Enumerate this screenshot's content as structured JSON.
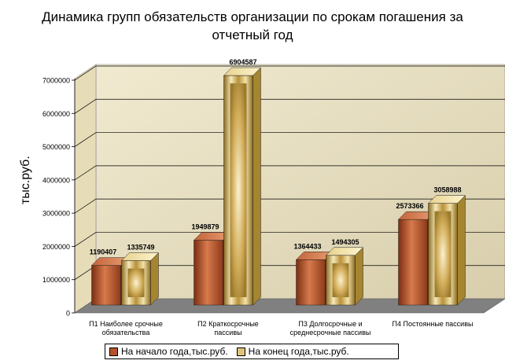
{
  "chart_data": {
    "type": "bar",
    "title": "Динамика групп обязательств организации по срокам погашения за отчетный год",
    "ylabel": "тыс.руб.",
    "xlabel": "",
    "ylim": [
      0,
      7000000
    ],
    "yticks": [
      "0",
      "1000000",
      "2000000",
      "3000000",
      "4000000",
      "5000000",
      "6000000",
      "7000000"
    ],
    "categories": [
      [
        "П1 Наиболее срочные",
        "обязательства"
      ],
      [
        "П2 Краткосрочные",
        "пассивы"
      ],
      [
        "П3 Долгосрочные и",
        "среднесрочные пассивы"
      ],
      [
        "П4 Постоянные пассивы"
      ]
    ],
    "series": [
      {
        "name": "На начало года,тыс.руб.",
        "values": [
          1190407,
          1949879,
          1364433,
          2573366
        ],
        "labels": [
          "1190407",
          "1949879",
          "1364433",
          "2573366"
        ],
        "color": "#b5532c"
      },
      {
        "name": "На конец года,тыс.руб.",
        "values": [
          1335749,
          6904587,
          1494305,
          3058988
        ],
        "labels": [
          "1335749",
          "6904587",
          "1494305",
          "3058988"
        ],
        "color": "#e0c47c"
      }
    ],
    "grid": true,
    "legend_position": "bottom"
  }
}
